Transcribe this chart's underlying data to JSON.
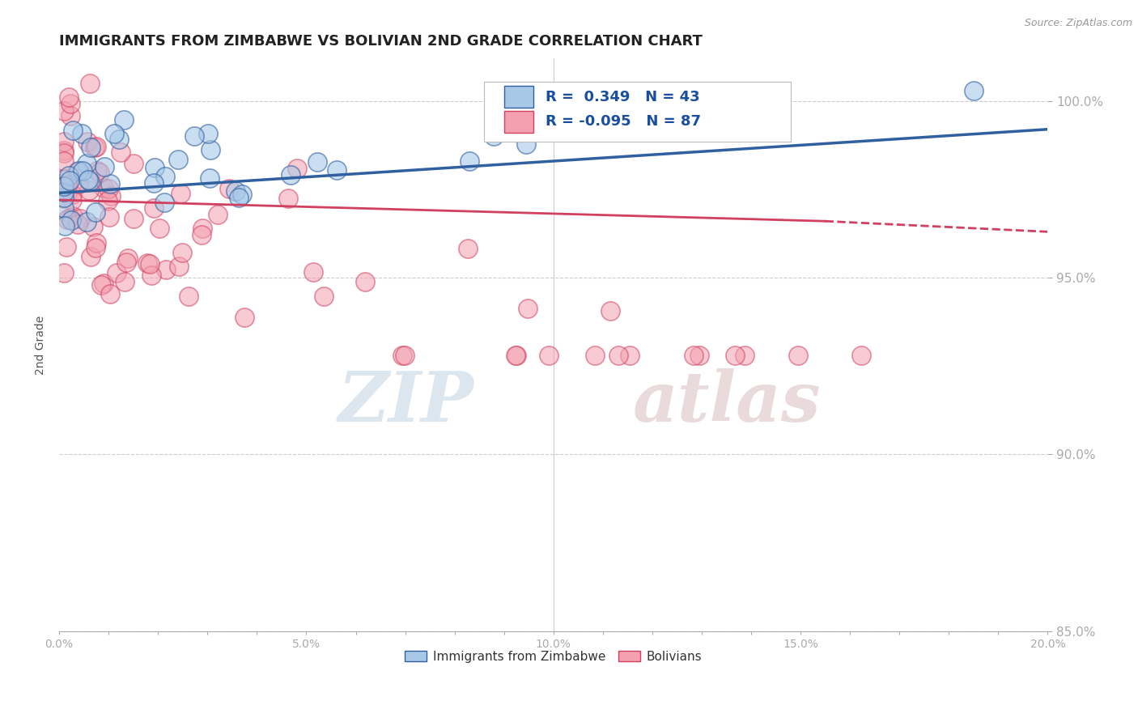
{
  "title": "IMMIGRANTS FROM ZIMBABWE VS BOLIVIAN 2ND GRADE CORRELATION CHART",
  "source_text": "Source: ZipAtlas.com",
  "ylabel": "2nd Grade",
  "xlim": [
    0.0,
    0.2
  ],
  "ylim": [
    0.925,
    1.012
  ],
  "xtick_labels": [
    "0.0%",
    "",
    "",
    "",
    "",
    "5.0%",
    "",
    "",
    "",
    "",
    "10.0%",
    "",
    "",
    "",
    "",
    "15.0%",
    "",
    "",
    "",
    "",
    "20.0%"
  ],
  "xtick_values": [
    0.0,
    0.01,
    0.02,
    0.03,
    0.04,
    0.05,
    0.06,
    0.07,
    0.08,
    0.09,
    0.1,
    0.11,
    0.12,
    0.13,
    0.14,
    0.15,
    0.16,
    0.17,
    0.18,
    0.19,
    0.2
  ],
  "ytick_labels": [
    "85.0%",
    "90.0%",
    "95.0%",
    "100.0%"
  ],
  "ytick_values": [
    0.85,
    0.9,
    0.95,
    1.0
  ],
  "legend_label1": "Immigrants from Zimbabwe",
  "legend_label2": "Bolivians",
  "r1": 0.349,
  "n1": 43,
  "r2": -0.095,
  "n2": 87,
  "color_blue": "#a8c8e8",
  "color_pink": "#f4a0b0",
  "line_color_blue": "#3060a0",
  "line_color_pink": "#d04060",
  "watermark_zip": "ZIP",
  "watermark_atlas": "atlas",
  "background_color": "#ffffff",
  "grid_color": "#cccccc"
}
